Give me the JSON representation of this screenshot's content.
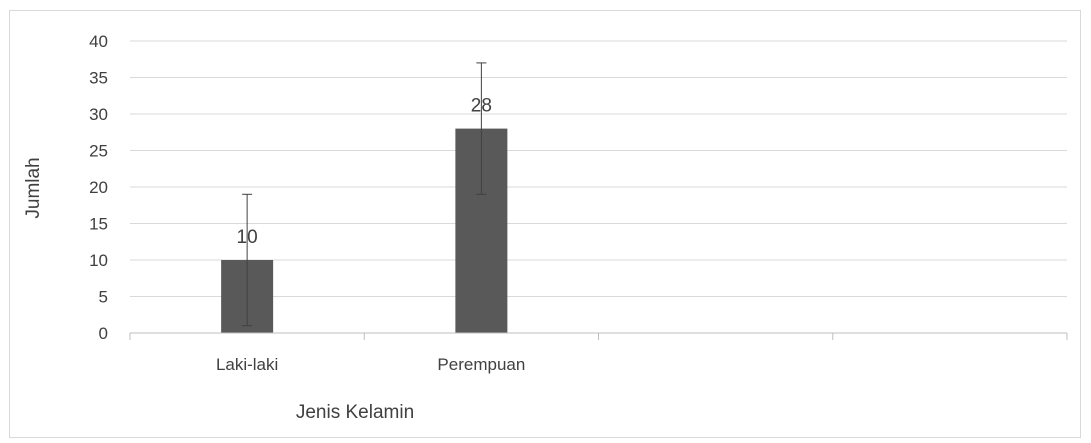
{
  "chart_data": {
    "type": "bar",
    "title": "",
    "xlabel": "Jenis Kelamin",
    "ylabel": "Jumlah",
    "categories": [
      "Laki-laki",
      "Perempuan",
      "",
      ""
    ],
    "values": [
      10,
      28,
      null,
      null
    ],
    "data_labels": [
      "10",
      "28",
      "",
      ""
    ],
    "error_bars": [
      {
        "low": 1,
        "high": 19
      },
      {
        "low": 19,
        "high": 37
      }
    ],
    "ylim": [
      0,
      40
    ],
    "yticks": [
      0,
      5,
      10,
      15,
      20,
      25,
      30,
      35,
      40
    ],
    "grid": true,
    "legend": "none",
    "colors": {
      "bar": "#595959",
      "grid": "#d9d9d9",
      "axis": "#bfbfbf",
      "error_bar": "#404040",
      "text": "#404040"
    }
  }
}
